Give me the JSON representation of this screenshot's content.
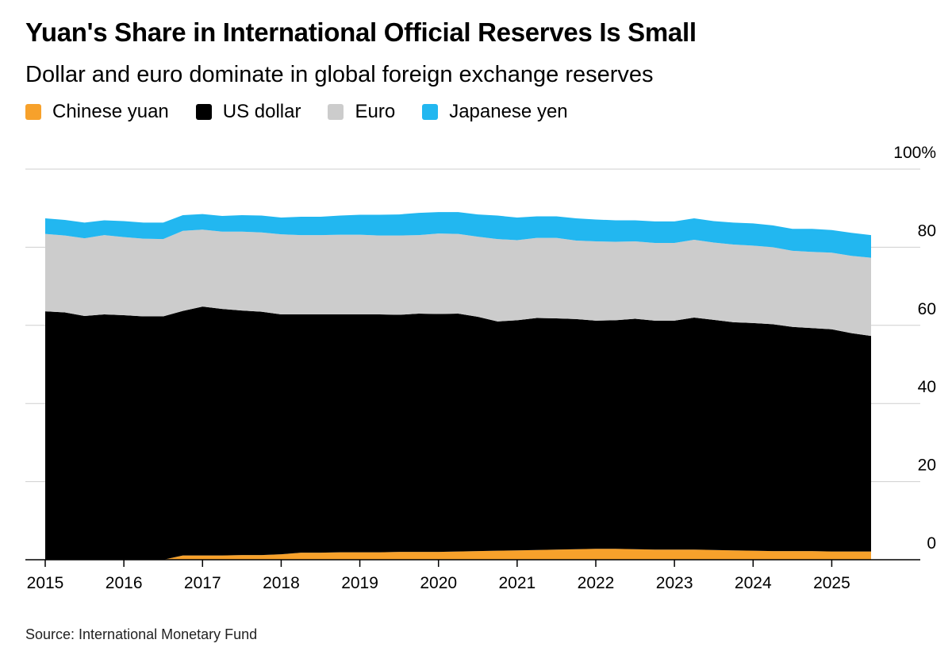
{
  "title": "Yuan's Share in International Official Reserves Is Small",
  "subtitle": "Dollar and euro dominate in global foreign exchange reserves",
  "source": "Source: International Monetary Fund",
  "chart_data": {
    "type": "area",
    "stacked": true,
    "x": [
      2015.0,
      2015.25,
      2015.5,
      2015.75,
      2016.0,
      2016.25,
      2016.5,
      2016.75,
      2017.0,
      2017.25,
      2017.5,
      2017.75,
      2018.0,
      2018.25,
      2018.5,
      2018.75,
      2019.0,
      2019.25,
      2019.5,
      2019.75,
      2020.0,
      2020.25,
      2020.5,
      2020.75,
      2021.0,
      2021.25,
      2021.5,
      2021.75,
      2022.0,
      2022.25,
      2022.5,
      2022.75,
      2023.0,
      2023.25,
      2023.5,
      2023.75,
      2024.0,
      2024.25,
      2024.5,
      2024.75,
      2025.0,
      2025.25,
      2025.5
    ],
    "x_ticks": [
      "2015",
      "2016",
      "2017",
      "2018",
      "2019",
      "2020",
      "2021",
      "2022",
      "2023",
      "2024",
      "2025"
    ],
    "y_ticks": [
      "0",
      "20",
      "40",
      "60",
      "80",
      "100%"
    ],
    "ylim": [
      0,
      100
    ],
    "grid": true,
    "legend_position": "top-left",
    "series": [
      {
        "name": "Chinese yuan",
        "color": "#f7a12b",
        "values": [
          0,
          0,
          0,
          0,
          0,
          0,
          0,
          1.1,
          1.1,
          1.1,
          1.2,
          1.2,
          1.4,
          1.8,
          1.8,
          1.9,
          1.9,
          1.9,
          2.0,
          2.0,
          2.0,
          2.1,
          2.2,
          2.3,
          2.4,
          2.5,
          2.6,
          2.7,
          2.8,
          2.8,
          2.7,
          2.6,
          2.6,
          2.6,
          2.5,
          2.4,
          2.3,
          2.2,
          2.2,
          2.2,
          2.1,
          2.1,
          2.1
        ]
      },
      {
        "name": "US dollar",
        "color": "#000000",
        "values": [
          63.6,
          63.3,
          62.4,
          62.8,
          62.6,
          62.3,
          62.3,
          62.6,
          63.7,
          63.1,
          62.6,
          62.3,
          61.4,
          61.0,
          61.0,
          60.9,
          60.9,
          60.9,
          60.7,
          61.0,
          60.9,
          60.9,
          60.0,
          58.7,
          58.9,
          59.4,
          59.2,
          58.9,
          58.4,
          58.5,
          59.0,
          58.6,
          58.6,
          59.4,
          58.9,
          58.4,
          58.3,
          58.1,
          57.4,
          57.1,
          56.9,
          55.9,
          55.2
        ]
      },
      {
        "name": "Euro",
        "color": "#cccccc",
        "values": [
          19.8,
          19.7,
          19.9,
          20.3,
          20.0,
          19.9,
          19.8,
          20.5,
          19.7,
          19.8,
          20.2,
          20.3,
          20.5,
          20.3,
          20.3,
          20.4,
          20.4,
          20.2,
          20.3,
          20.1,
          20.6,
          20.4,
          20.5,
          21.1,
          20.5,
          20.5,
          20.6,
          20.1,
          20.3,
          20.1,
          19.8,
          19.9,
          19.9,
          19.9,
          19.8,
          19.9,
          19.8,
          19.7,
          19.5,
          19.5,
          19.6,
          19.8,
          20.0
        ]
      },
      {
        "name": "Japanese yen",
        "color": "#22b7f0",
        "values": [
          4.0,
          4.0,
          4.0,
          3.8,
          4.1,
          4.1,
          4.2,
          4.0,
          4.0,
          4.0,
          4.2,
          4.3,
          4.3,
          4.7,
          4.7,
          4.9,
          5.1,
          5.3,
          5.4,
          5.7,
          5.5,
          5.6,
          5.7,
          6.0,
          5.8,
          5.5,
          5.5,
          5.7,
          5.6,
          5.5,
          5.4,
          5.5,
          5.5,
          5.5,
          5.5,
          5.6,
          5.7,
          5.6,
          5.6,
          5.9,
          5.8,
          5.9,
          5.8
        ]
      }
    ]
  }
}
